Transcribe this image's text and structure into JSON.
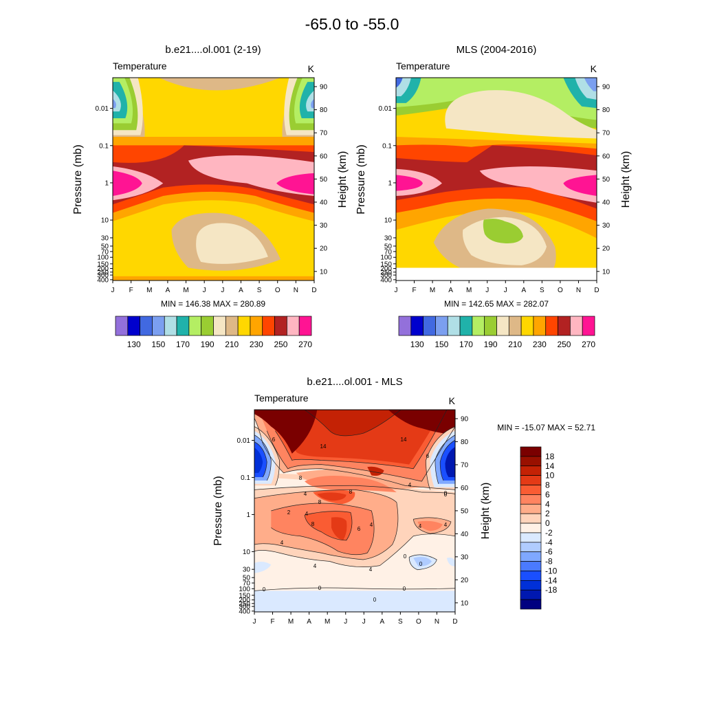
{
  "figure_title": "-65.0 to -55.0",
  "palette_fill": [
    "#9370db",
    "#0000cd",
    "#4169e1",
    "#7b9ff0",
    "#b0dfe6",
    "#20b2aa",
    "#b4ee63",
    "#9acd32",
    "#f5e6c4",
    "#deb887",
    "#ffd700",
    "#ffa500",
    "#ff4500",
    "#b22222",
    "#ffb6c1",
    "#ff1493"
  ],
  "palette_diff": [
    "#000080",
    "#0018b0",
    "#0030d8",
    "#1a4fff",
    "#4a7aff",
    "#7fa8ff",
    "#b0ccff",
    "#dae9ff",
    "#fff1e6",
    "#ffd4bb",
    "#ffad8a",
    "#ff8460",
    "#fa5c33",
    "#e43a16",
    "#c42205",
    "#991000",
    "#7a0000"
  ],
  "chart_data": [
    {
      "type": "filled_contour",
      "title": "b.e21....ol.001 (2-19)",
      "variable": "Temperature",
      "units": "K",
      "xlabel": "",
      "ylabel": "Pressure (mb)",
      "ylabel_right": "Height (km)",
      "x_ticks": [
        "J",
        "F",
        "M",
        "A",
        "M",
        "J",
        "J",
        "A",
        "S",
        "O",
        "N",
        "D"
      ],
      "y_ticks": [
        "0.01",
        "0.1",
        "1",
        "10",
        "30",
        "50",
        "70",
        "100",
        "150",
        "200",
        "250",
        "300",
        "400"
      ],
      "height_ticks": [
        "90",
        "80",
        "70",
        "60",
        "50",
        "40",
        "30",
        "20",
        "10"
      ],
      "stats": "MIN = 146.38  MAX = 280.89",
      "min": 146.38,
      "max": 280.89,
      "colorbar_labels": [
        "130",
        "150",
        "170",
        "190",
        "210",
        "230",
        "250",
        "270"
      ],
      "contour_levels": [
        130,
        140,
        150,
        160,
        170,
        180,
        190,
        200,
        210,
        220,
        230,
        240,
        250,
        260,
        270
      ]
    },
    {
      "type": "filled_contour",
      "title": "MLS (2004-2016)",
      "variable": "Temperature",
      "units": "K",
      "xlabel": "",
      "ylabel": "Pressure (mb)",
      "ylabel_right": "Height (km)",
      "x_ticks": [
        "J",
        "F",
        "M",
        "A",
        "M",
        "J",
        "J",
        "A",
        "S",
        "O",
        "N",
        "D"
      ],
      "y_ticks": [
        "0.01",
        "0.1",
        "1",
        "10",
        "30",
        "50",
        "70",
        "100",
        "150",
        "200",
        "250",
        "300",
        "400"
      ],
      "height_ticks": [
        "90",
        "80",
        "70",
        "60",
        "50",
        "40",
        "30",
        "20",
        "10"
      ],
      "stats": "MIN = 142.65  MAX = 282.07",
      "min": 142.65,
      "max": 282.07,
      "colorbar_labels": [
        "130",
        "150",
        "170",
        "190",
        "210",
        "230",
        "250",
        "270"
      ],
      "contour_levels": [
        130,
        140,
        150,
        160,
        170,
        180,
        190,
        200,
        210,
        220,
        230,
        240,
        250,
        260,
        270
      ]
    },
    {
      "type": "filled_contour",
      "title": "b.e21....ol.001 - MLS",
      "variable": "Temperature",
      "units": "K",
      "xlabel": "",
      "ylabel": "Pressure (mb)",
      "ylabel_right": "Height (km)",
      "x_ticks": [
        "J",
        "F",
        "M",
        "A",
        "M",
        "J",
        "J",
        "A",
        "S",
        "O",
        "N",
        "D"
      ],
      "y_ticks": [
        "0.01",
        "0.1",
        "1",
        "10",
        "30",
        "50",
        "70",
        "100",
        "150",
        "200",
        "250",
        "300",
        "400"
      ],
      "height_ticks": [
        "90",
        "80",
        "70",
        "60",
        "50",
        "40",
        "30",
        "20",
        "10"
      ],
      "stats": "MIN = -15.07  MAX =  52.71",
      "min": -15.07,
      "max": 52.71,
      "colorbar_labels": [
        "18",
        "14",
        "10",
        "8",
        "6",
        "4",
        "2",
        "0",
        "-2",
        "-4",
        "-6",
        "-8",
        "-10",
        "-14",
        "-18"
      ],
      "contour_levels": [
        -18,
        -14,
        -10,
        -8,
        -6,
        -4,
        -2,
        0,
        2,
        4,
        6,
        8,
        10,
        14,
        18
      ],
      "contour_line_labels": [
        "14",
        "14",
        "6",
        "8",
        "8",
        "8",
        "8",
        "6",
        "4",
        "4",
        "4",
        "4",
        "4",
        "4",
        "4",
        "0",
        "0",
        "0",
        "0",
        "0",
        "0",
        "0",
        "4",
        "6",
        "4",
        "2",
        "0"
      ]
    }
  ]
}
